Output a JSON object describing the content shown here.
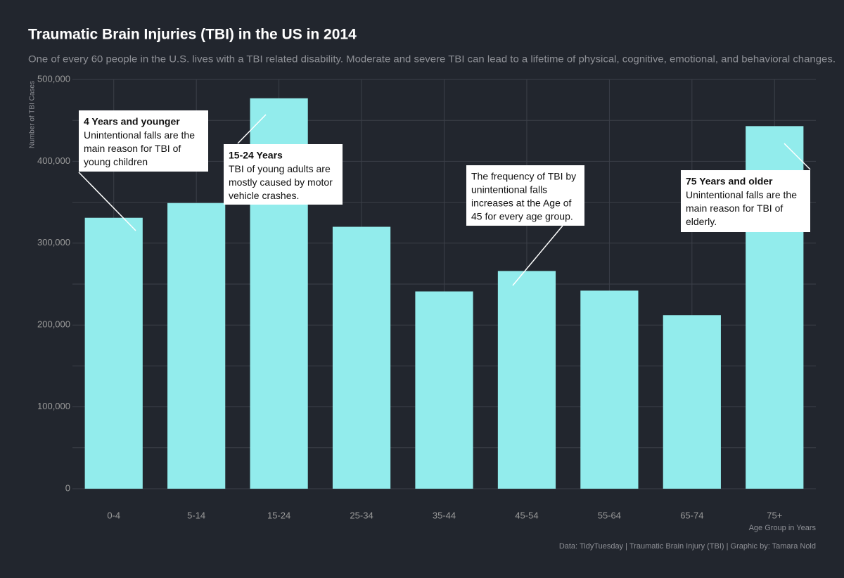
{
  "chart_data": {
    "type": "bar",
    "title": "Traumatic Brain Injuries (TBI) in the US in 2014",
    "subtitle": "One of every 60 people in the U.S. lives with a TBI related disability. Moderate and severe TBI can lead to a lifetime of physical, cognitive, emotional, and behavioral changes.",
    "x_label": "Age Group in Years",
    "y_label": "Number of TBI Cases",
    "caption": "Data: TidyTuesday | Traumatic Brain Injury (TBI) | Graphic by: Tamara Nold",
    "categories": [
      "0-4",
      "5-14",
      "15-24",
      "25-34",
      "35-44",
      "45-54",
      "55-64",
      "65-74",
      "75+"
    ],
    "values": [
      331000,
      349000,
      477000,
      320000,
      241000,
      266000,
      242000,
      212000,
      443000
    ],
    "color": "#92ecec",
    "ylim": [
      0,
      500000
    ],
    "yticks": [
      0,
      {
        "value": 100000,
        "label": "100,000"
      },
      {
        "value": 200000,
        "label": "200,000"
      },
      {
        "value": 300000,
        "label": "300,000"
      },
      {
        "value": 400000,
        "label": "400,000"
      },
      {
        "value": 500000,
        "label": "500,000"
      }
    ],
    "grid": true,
    "annotations": [
      {
        "title": "4 Years and younger",
        "lines": [
          "Unintentional falls are the",
          "main reason for TBI of",
          "young children"
        ]
      },
      {
        "title": "15-24 Years",
        "lines": [
          "TBI of young adults are",
          "mostly caused by motor",
          "vehicle crashes."
        ]
      },
      {
        "lines": [
          "The frequency of TBI by",
          "unintentional falls",
          "increases at the Age of",
          "45 for every age group."
        ]
      },
      {
        "title": "75 Years and older",
        "lines": [
          "Unintentional falls are the",
          "main reason for TBI of",
          "elderly."
        ]
      }
    ]
  }
}
